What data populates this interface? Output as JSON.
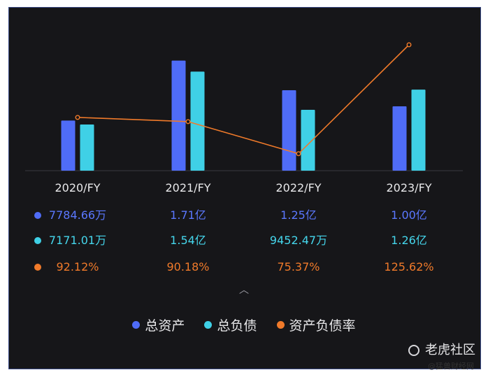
{
  "chart_data": {
    "type": "bar",
    "categories": [
      "2020/FY",
      "2021/FY",
      "2022/FY",
      "2023/FY"
    ],
    "series": [
      {
        "name": "总资产",
        "values_yi": [
          0.778466,
          1.71,
          1.25,
          1.0
        ],
        "labels": [
          "7784.66万",
          "1.71亿",
          "1.25亿",
          "1.00亿"
        ],
        "color": "#4f6cf7"
      },
      {
        "name": "总负债",
        "values_yi": [
          0.717101,
          1.54,
          0.945247,
          1.26
        ],
        "labels": [
          "7171.01万",
          "1.54亿",
          "9452.47万",
          "1.26亿"
        ],
        "color": "#3fd0e6"
      },
      {
        "name": "资产负债率",
        "kind": "line",
        "values_pct": [
          92.12,
          90.18,
          75.37,
          125.62
        ],
        "labels": [
          "92.12%",
          "90.18%",
          "75.37%",
          "125.62%"
        ],
        "color": "#f07a2a"
      }
    ]
  },
  "watermark": {
    "brand": "老虎社区",
    "source": "@猛兽财经网"
  }
}
